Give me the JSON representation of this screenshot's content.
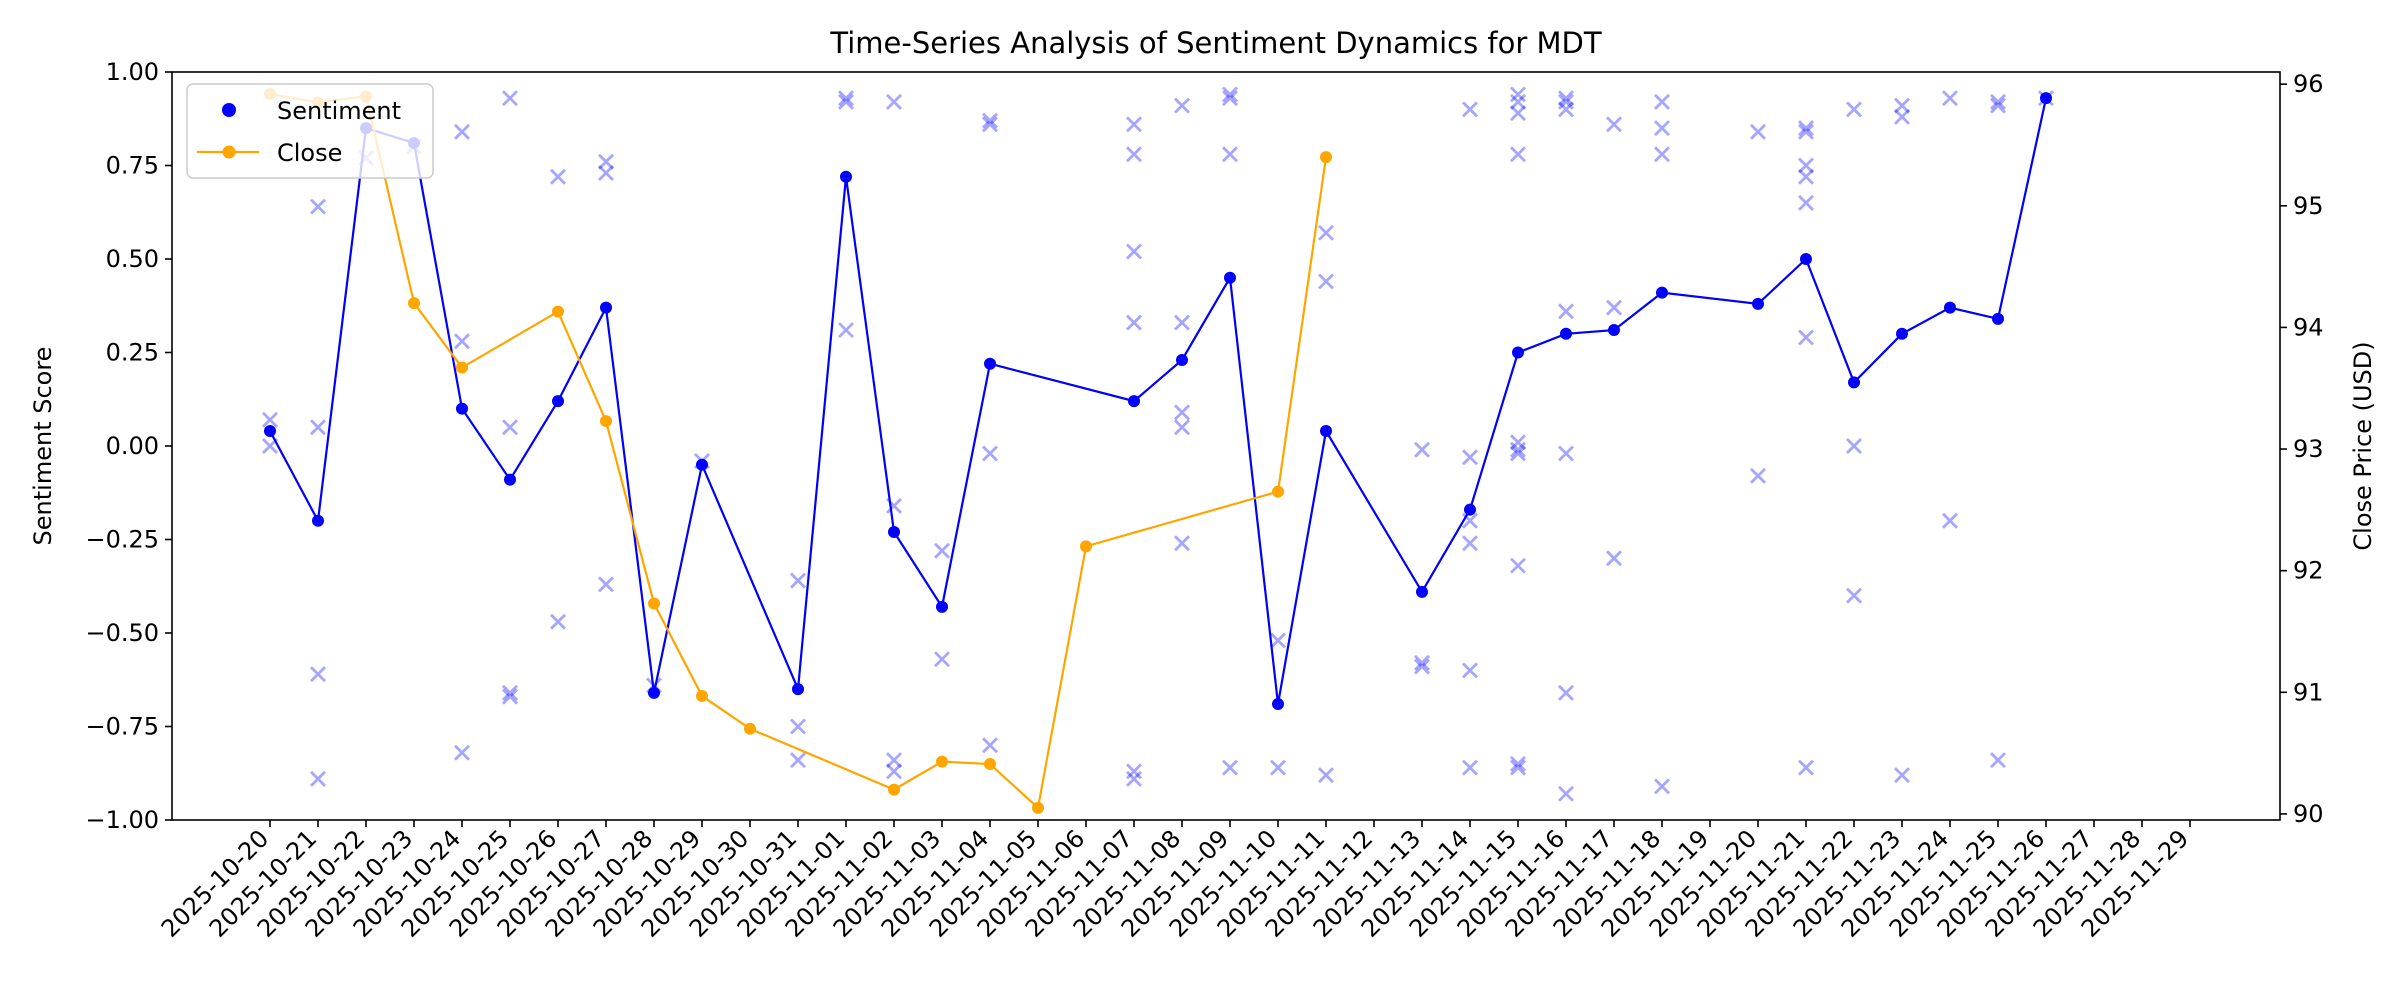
{
  "chart_data": {
    "type": "line",
    "title": "Time-Series Analysis of Sentiment Dynamics for MDT",
    "ylabel": "Sentiment Score",
    "y2label": "Close Price (USD)",
    "ylim": [
      -1.0,
      1.0
    ],
    "y2lim": [
      89.95,
      96.1
    ],
    "yticks": [
      "−1.00",
      "−0.75",
      "−0.50",
      "−0.25",
      "0.00",
      "0.25",
      "0.50",
      "0.75",
      "1.00"
    ],
    "y2ticks": [
      "90",
      "91",
      "92",
      "93",
      "94",
      "95",
      "96"
    ],
    "grid": false,
    "legend_position": "top-left",
    "x": [
      "2025-10-20",
      "2025-10-21",
      "2025-10-22",
      "2025-10-23",
      "2025-10-24",
      "2025-10-25",
      "2025-10-26",
      "2025-10-27",
      "2025-10-28",
      "2025-10-29",
      "2025-10-30",
      "2025-10-31",
      "2025-11-01",
      "2025-11-02",
      "2025-11-03",
      "2025-11-04",
      "2025-11-05",
      "2025-11-06",
      "2025-11-07",
      "2025-11-08",
      "2025-11-09",
      "2025-11-10",
      "2025-11-11",
      "2025-11-12",
      "2025-11-13",
      "2025-11-14",
      "2025-11-15",
      "2025-11-16",
      "2025-11-17",
      "2025-11-18",
      "2025-11-19",
      "2025-11-20",
      "2025-11-21",
      "2025-11-22",
      "2025-11-23",
      "2025-11-24",
      "2025-11-25",
      "2025-11-26",
      "2025-11-27",
      "2025-11-28",
      "2025-11-29"
    ],
    "series": [
      {
        "name": "Sentiment",
        "color": "#0000ff",
        "axis": "left",
        "points": [
          [
            "2025-10-20",
            0.04
          ],
          [
            "2025-10-21",
            -0.2
          ],
          [
            "2025-10-22",
            0.85
          ],
          [
            "2025-10-23",
            0.81
          ],
          [
            "2025-10-24",
            0.1
          ],
          [
            "2025-10-25",
            -0.09
          ],
          [
            "2025-10-26",
            0.12
          ],
          [
            "2025-10-27",
            0.37
          ],
          [
            "2025-10-28",
            -0.66
          ],
          [
            "2025-10-29",
            -0.05
          ],
          [
            "2025-10-31",
            -0.65
          ],
          [
            "2025-11-01",
            0.72
          ],
          [
            "2025-11-02",
            -0.23
          ],
          [
            "2025-11-03",
            -0.43
          ],
          [
            "2025-11-04",
            0.22
          ],
          [
            "2025-11-07",
            0.12
          ],
          [
            "2025-11-08",
            0.23
          ],
          [
            "2025-11-09",
            0.45
          ],
          [
            "2025-11-10",
            -0.69
          ],
          [
            "2025-11-11",
            0.04
          ],
          [
            "2025-11-13",
            -0.39
          ],
          [
            "2025-11-14",
            -0.17
          ],
          [
            "2025-11-15",
            0.25
          ],
          [
            "2025-11-16",
            0.3
          ],
          [
            "2025-11-17",
            0.31
          ],
          [
            "2025-11-18",
            0.41
          ],
          [
            "2025-11-20",
            0.38
          ],
          [
            "2025-11-21",
            0.5
          ],
          [
            "2025-11-22",
            0.17
          ],
          [
            "2025-11-23",
            0.3
          ],
          [
            "2025-11-24",
            0.37
          ],
          [
            "2025-11-25",
            0.34
          ],
          [
            "2025-11-26",
            0.93
          ]
        ]
      },
      {
        "name": "Close",
        "color": "#ffa500",
        "axis": "right",
        "points": [
          [
            "2025-10-20",
            95.92
          ],
          [
            "2025-10-21",
            95.85
          ],
          [
            "2025-10-22",
            95.9
          ],
          [
            "2025-10-23",
            94.2
          ],
          [
            "2025-10-24",
            93.67
          ],
          [
            "2025-10-26",
            94.13
          ],
          [
            "2025-10-27",
            93.23
          ],
          [
            "2025-10-28",
            91.73
          ],
          [
            "2025-10-29",
            90.97
          ],
          [
            "2025-10-30",
            90.7
          ],
          [
            "2025-11-02",
            90.2
          ],
          [
            "2025-11-03",
            90.43
          ],
          [
            "2025-11-04",
            90.41
          ],
          [
            "2025-11-05",
            90.05
          ],
          [
            "2025-11-06",
            92.2
          ],
          [
            "2025-11-10",
            92.65
          ],
          [
            "2025-11-11",
            95.4
          ]
        ]
      }
    ],
    "scatter": {
      "marker": "x",
      "color": "#0000ff",
      "alpha": 0.35,
      "axis": "left",
      "points": [
        [
          "2025-10-20",
          0.07
        ],
        [
          "2025-10-20",
          0.0
        ],
        [
          "2025-10-21",
          0.64
        ],
        [
          "2025-10-21",
          0.05
        ],
        [
          "2025-10-21",
          -0.61
        ],
        [
          "2025-10-21",
          -0.89
        ],
        [
          "2025-10-22",
          0.77
        ],
        [
          "2025-10-23",
          0.8
        ],
        [
          "2025-10-24",
          0.84
        ],
        [
          "2025-10-24",
          0.28
        ],
        [
          "2025-10-24",
          -0.82
        ],
        [
          "2025-10-25",
          0.93
        ],
        [
          "2025-10-25",
          0.05
        ],
        [
          "2025-10-25",
          -0.66
        ],
        [
          "2025-10-25",
          -0.67
        ],
        [
          "2025-10-26",
          0.72
        ],
        [
          "2025-10-26",
          -0.47
        ],
        [
          "2025-10-27",
          0.76
        ],
        [
          "2025-10-27",
          0.73
        ],
        [
          "2025-10-27",
          -0.37
        ],
        [
          "2025-10-28",
          -0.64
        ],
        [
          "2025-10-29",
          -0.04
        ],
        [
          "2025-10-31",
          -0.36
        ],
        [
          "2025-10-31",
          -0.75
        ],
        [
          "2025-10-31",
          -0.84
        ],
        [
          "2025-11-01",
          0.93
        ],
        [
          "2025-11-01",
          0.92
        ],
        [
          "2025-11-01",
          0.31
        ],
        [
          "2025-11-02",
          0.92
        ],
        [
          "2025-11-02",
          -0.16
        ],
        [
          "2025-11-02",
          -0.84
        ],
        [
          "2025-11-02",
          -0.87
        ],
        [
          "2025-11-03",
          -0.28
        ],
        [
          "2025-11-03",
          -0.57
        ],
        [
          "2025-11-04",
          0.86
        ],
        [
          "2025-11-04",
          0.87
        ],
        [
          "2025-11-04",
          -0.02
        ],
        [
          "2025-11-04",
          -0.8
        ],
        [
          "2025-11-07",
          0.86
        ],
        [
          "2025-11-07",
          0.78
        ],
        [
          "2025-11-07",
          0.52
        ],
        [
          "2025-11-07",
          0.33
        ],
        [
          "2025-11-07",
          -0.87
        ],
        [
          "2025-11-07",
          -0.89
        ],
        [
          "2025-11-08",
          0.91
        ],
        [
          "2025-11-08",
          0.33
        ],
        [
          "2025-11-08",
          0.09
        ],
        [
          "2025-11-08",
          0.05
        ],
        [
          "2025-11-08",
          -0.26
        ],
        [
          "2025-11-09",
          0.93
        ],
        [
          "2025-11-09",
          0.94
        ],
        [
          "2025-11-09",
          0.78
        ],
        [
          "2025-11-09",
          -0.86
        ],
        [
          "2025-11-10",
          -0.52
        ],
        [
          "2025-11-10",
          -0.86
        ],
        [
          "2025-11-11",
          0.57
        ],
        [
          "2025-11-11",
          0.44
        ],
        [
          "2025-11-11",
          -0.88
        ],
        [
          "2025-11-13",
          -0.01
        ],
        [
          "2025-11-13",
          -0.58
        ],
        [
          "2025-11-13",
          -0.59
        ],
        [
          "2025-11-14",
          0.9
        ],
        [
          "2025-11-14",
          -0.03
        ],
        [
          "2025-11-14",
          -0.2
        ],
        [
          "2025-11-14",
          -0.26
        ],
        [
          "2025-11-14",
          -0.6
        ],
        [
          "2025-11-14",
          -0.86
        ],
        [
          "2025-11-15",
          0.94
        ],
        [
          "2025-11-15",
          0.92
        ],
        [
          "2025-11-15",
          0.89
        ],
        [
          "2025-11-15",
          0.78
        ],
        [
          "2025-11-15",
          0.01
        ],
        [
          "2025-11-15",
          -0.01
        ],
        [
          "2025-11-15",
          -0.02
        ],
        [
          "2025-11-15",
          -0.32
        ],
        [
          "2025-11-15",
          -0.85
        ],
        [
          "2025-11-15",
          -0.86
        ],
        [
          "2025-11-16",
          0.93
        ],
        [
          "2025-11-16",
          0.92
        ],
        [
          "2025-11-16",
          0.9
        ],
        [
          "2025-11-16",
          0.36
        ],
        [
          "2025-11-16",
          -0.02
        ],
        [
          "2025-11-16",
          -0.66
        ],
        [
          "2025-11-16",
          -0.93
        ],
        [
          "2025-11-17",
          0.86
        ],
        [
          "2025-11-17",
          0.37
        ],
        [
          "2025-11-17",
          -0.3
        ],
        [
          "2025-11-18",
          0.92
        ],
        [
          "2025-11-18",
          0.85
        ],
        [
          "2025-11-18",
          0.78
        ],
        [
          "2025-11-18",
          -0.91
        ],
        [
          "2025-11-20",
          0.84
        ],
        [
          "2025-11-20",
          -0.08
        ],
        [
          "2025-11-21",
          0.84
        ],
        [
          "2025-11-21",
          0.85
        ],
        [
          "2025-11-21",
          0.75
        ],
        [
          "2025-11-21",
          0.72
        ],
        [
          "2025-11-21",
          0.65
        ],
        [
          "2025-11-21",
          0.29
        ],
        [
          "2025-11-21",
          -0.86
        ],
        [
          "2025-11-22",
          0.9
        ],
        [
          "2025-11-22",
          0.0
        ],
        [
          "2025-11-22",
          -0.4
        ],
        [
          "2025-11-23",
          0.91
        ],
        [
          "2025-11-23",
          0.88
        ],
        [
          "2025-11-23",
          -0.88
        ],
        [
          "2025-11-24",
          0.93
        ],
        [
          "2025-11-24",
          -0.2
        ],
        [
          "2025-11-25",
          0.92
        ],
        [
          "2025-11-25",
          0.91
        ],
        [
          "2025-11-25",
          -0.84
        ],
        [
          "2025-11-26",
          0.93
        ]
      ]
    }
  }
}
